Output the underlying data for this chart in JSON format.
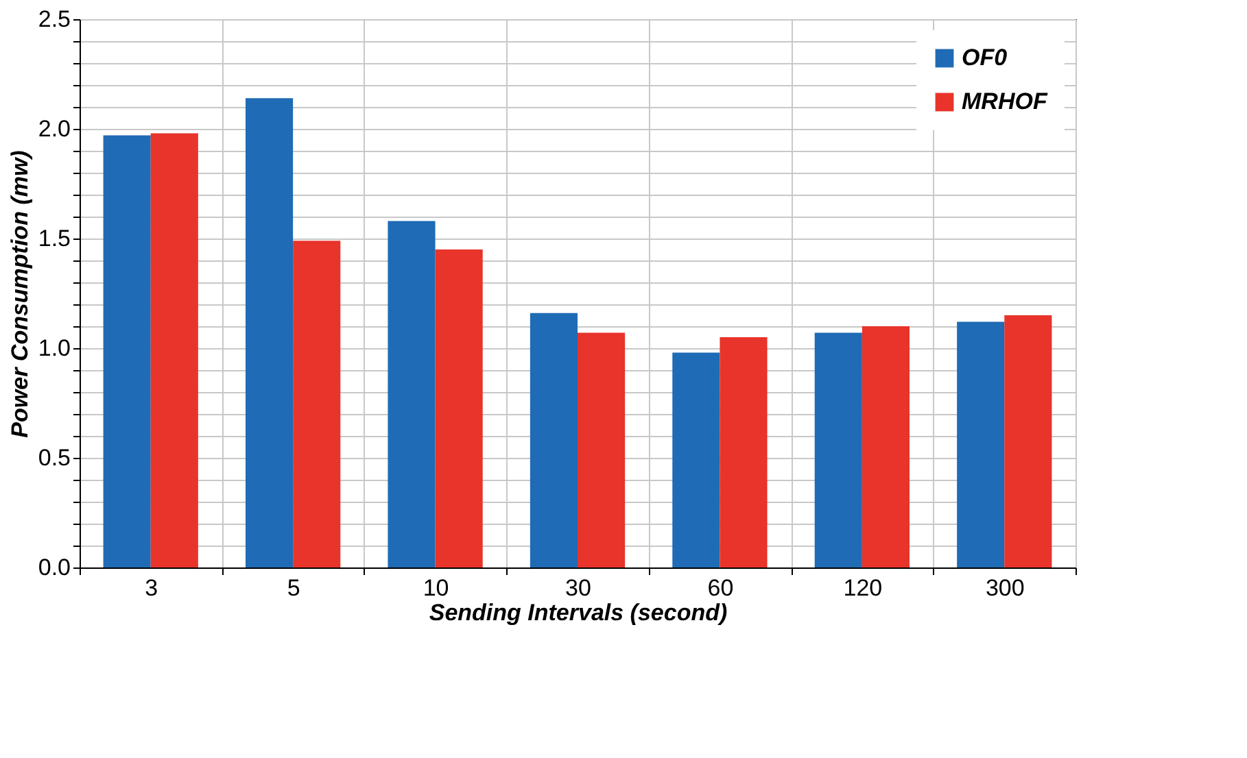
{
  "chart_data": {
    "type": "bar",
    "xlabel": "Sending Intervals (second)",
    "ylabel": "Power  Consumption (mw)",
    "categories": [
      "3",
      "5",
      "10",
      "30",
      "60",
      "120",
      "300"
    ],
    "series": [
      {
        "name": "OF0",
        "color": "#1f6bb5",
        "values": [
          1.97,
          2.14,
          1.58,
          1.16,
          0.98,
          1.07,
          1.12
        ]
      },
      {
        "name": "MRHOF",
        "color": "#e8342b",
        "values": [
          1.98,
          1.49,
          1.45,
          1.07,
          1.05,
          1.1,
          1.15
        ]
      }
    ],
    "ylim": [
      0,
      2.5
    ],
    "yticks": [
      {
        "value": 0,
        "label": "0.0"
      },
      {
        "value": 0.1,
        "label": null
      },
      {
        "value": 0.2,
        "label": null
      },
      {
        "value": 0.3,
        "label": null
      },
      {
        "value": 0.4,
        "label": null
      },
      {
        "value": 0.5,
        "label": "0.5"
      },
      {
        "value": 0.6,
        "label": null
      },
      {
        "value": 0.7,
        "label": null
      },
      {
        "value": 0.8,
        "label": null
      },
      {
        "value": 0.9,
        "label": null
      },
      {
        "value": 1.0,
        "label": "1.0"
      },
      {
        "value": 1.1,
        "label": null
      },
      {
        "value": 1.2,
        "label": null
      },
      {
        "value": 1.3,
        "label": null
      },
      {
        "value": 1.4,
        "label": null
      },
      {
        "value": 1.5,
        "label": "1.5"
      },
      {
        "value": 1.6,
        "label": null
      },
      {
        "value": 1.7,
        "label": null
      },
      {
        "value": 1.8,
        "label": null
      },
      {
        "value": 1.9,
        "label": null
      },
      {
        "value": 2.0,
        "label": "2.0"
      },
      {
        "value": 2.1,
        "label": null
      },
      {
        "value": 2.2,
        "label": null
      },
      {
        "value": 2.3,
        "label": null
      },
      {
        "value": 2.4,
        "label": null
      },
      {
        "value": 2.5,
        "label": "2.5"
      }
    ],
    "grid": true,
    "legend": "top right"
  }
}
